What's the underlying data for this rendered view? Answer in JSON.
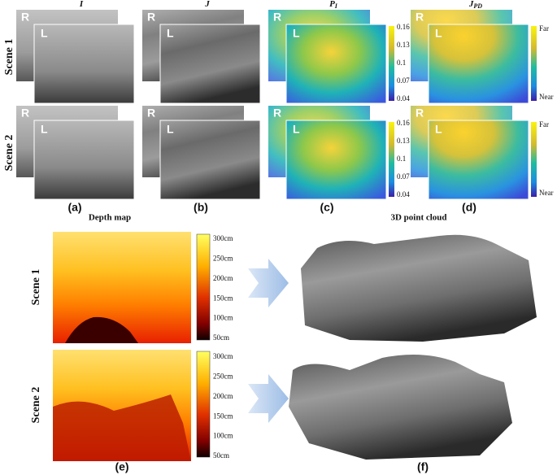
{
  "top": {
    "columns": [
      {
        "symbol": "I"
      },
      {
        "symbol": "J"
      },
      {
        "symbol": "P",
        "subscript": "I"
      },
      {
        "symbol": "J",
        "subscript": "PD"
      }
    ],
    "rows": [
      "Scene 1",
      "Scene 2"
    ],
    "view_labels": {
      "right": "R",
      "left": "L"
    },
    "colorbar_c": [
      "0.16",
      "0.13",
      "0.1",
      "0.07",
      "0.04"
    ],
    "colorbar_d": {
      "top": "Far",
      "bottom": "Near"
    },
    "panel_labels": [
      "(a)",
      "(b)",
      "(c)",
      "(d)"
    ]
  },
  "bottom": {
    "depth_title": "Depth map",
    "cloud_title": "3D point cloud",
    "rows": [
      "Scene 1",
      "Scene 2"
    ],
    "depth_ticks": [
      "300cm",
      "250cm",
      "200cm",
      "150cm",
      "100cm",
      "50cm"
    ],
    "panel_labels": [
      "(e)",
      "(f)"
    ]
  }
}
